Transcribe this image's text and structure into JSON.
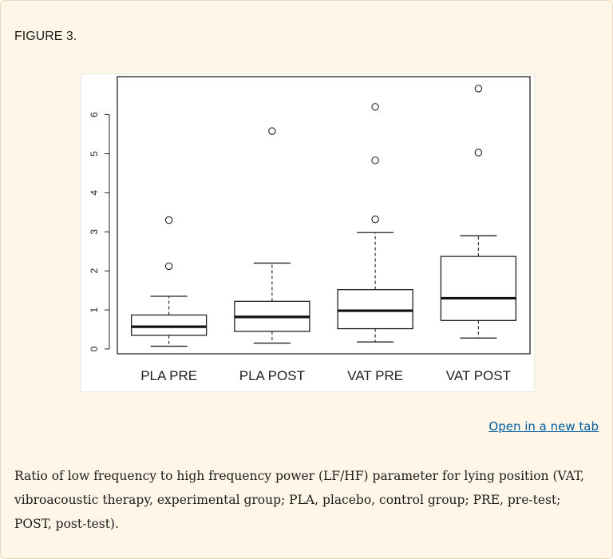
{
  "figure_label": "FIGURE 3.",
  "link_label": "Open in a new tab",
  "caption": "Ratio of low frequency to high frequency power (LF/HF) parameter for lying position (VAT, vibroacoustic therapy, experimental group; PLA, placebo, control group; PRE, pre-test; POST, post-test).",
  "chart_data": {
    "type": "box",
    "title": "",
    "xlabel": "",
    "ylabel": "",
    "ylim": [
      0,
      6.8
    ],
    "yticks": [
      0,
      1,
      2,
      3,
      4,
      5,
      6
    ],
    "categories": [
      "PLA PRE",
      "PLA POST",
      "VAT PRE",
      "VAT POST"
    ],
    "boxes": [
      {
        "label": "PLA PRE",
        "whisker_low": 0.07,
        "q1": 0.35,
        "median": 0.57,
        "q3": 0.87,
        "whisker_high": 1.35,
        "outliers": [
          2.12,
          3.3
        ]
      },
      {
        "label": "PLA POST",
        "whisker_low": 0.15,
        "q1": 0.45,
        "median": 0.82,
        "q3": 1.22,
        "whisker_high": 2.2,
        "outliers": [
          5.58
        ]
      },
      {
        "label": "VAT PRE",
        "whisker_low": 0.18,
        "q1": 0.52,
        "median": 0.98,
        "q3": 1.52,
        "whisker_high": 2.98,
        "outliers": [
          3.32,
          4.83,
          6.2
        ]
      },
      {
        "label": "VAT POST",
        "whisker_low": 0.28,
        "q1": 0.73,
        "median": 1.3,
        "q3": 2.37,
        "whisker_high": 2.9,
        "outliers": [
          5.03,
          6.67
        ]
      }
    ],
    "grid": false,
    "legend": "none"
  }
}
